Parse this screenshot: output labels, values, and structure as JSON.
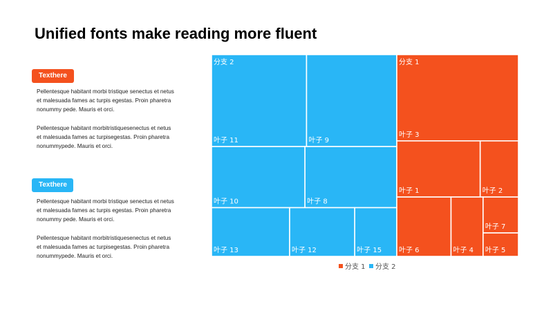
{
  "slide": {
    "title": "Unified fonts make reading more fluent"
  },
  "sections": [
    {
      "tag": "Texthere",
      "tag_color": "#F4511E",
      "paragraphs": [
        "Pellentesque  habitant  morbi  tristique  senectus  et netus\net malesuada  fames  ac turpis  egestas.  Proin pharetra\nnonummy  pede.  Mauris et orci.",
        "Pellentesque  habitant  morbitristiquesenectus  et netus\net malesuada  fames  ac turpisegestas.  Proin pharetra\nnonummypede.   Mauris et orci."
      ]
    },
    {
      "tag": "Texthere",
      "tag_color": "#29B6F6",
      "paragraphs": [
        "Pellentesque  habitant  morbi  tristique  senectus  et netus\net malesuada  fames  ac turpis  egestas.  Proin pharetra\nnonummy  pede.  Mauris et orci.",
        "Pellentesque  habitant  morbitristiquesenectus  et netus\net malesuada  fames  ac turpisegestas.  Proin pharetra\nnonummypede.   Mauris et orci."
      ]
    }
  ],
  "chart_data": {
    "type": "treemap",
    "title": "",
    "colors": {
      "分支 1": "#F4511E",
      "分支 2": "#29B6F6"
    },
    "legend": {
      "position": "bottom",
      "entries": [
        "分支 1",
        "分支 2"
      ]
    },
    "branches": [
      {
        "name": "分支 2",
        "leaves": [
          {
            "name": "叶子 11",
            "value": 17.9
          },
          {
            "name": "叶子 9",
            "value": 17.0
          },
          {
            "name": "叶子 10",
            "value": 11.7
          },
          {
            "name": "叶子 8",
            "value": 11.5
          },
          {
            "name": "叶子 13",
            "value": 7.8
          },
          {
            "name": "叶子 12",
            "value": 6.5
          },
          {
            "name": "叶子 15",
            "value": 4.2
          }
        ]
      },
      {
        "name": "分支 1",
        "leaves": [
          {
            "name": "叶子 3",
            "value": 21.5
          },
          {
            "name": "叶子 1",
            "value": 9.6
          },
          {
            "name": "叶子 2",
            "value": 4.4
          },
          {
            "name": "叶子 6",
            "value": 6.6
          },
          {
            "name": "叶子 4",
            "value": 3.9
          },
          {
            "name": "叶子 7",
            "value": 2.6
          },
          {
            "name": "叶子 5",
            "value": 1.7
          }
        ]
      }
    ]
  }
}
